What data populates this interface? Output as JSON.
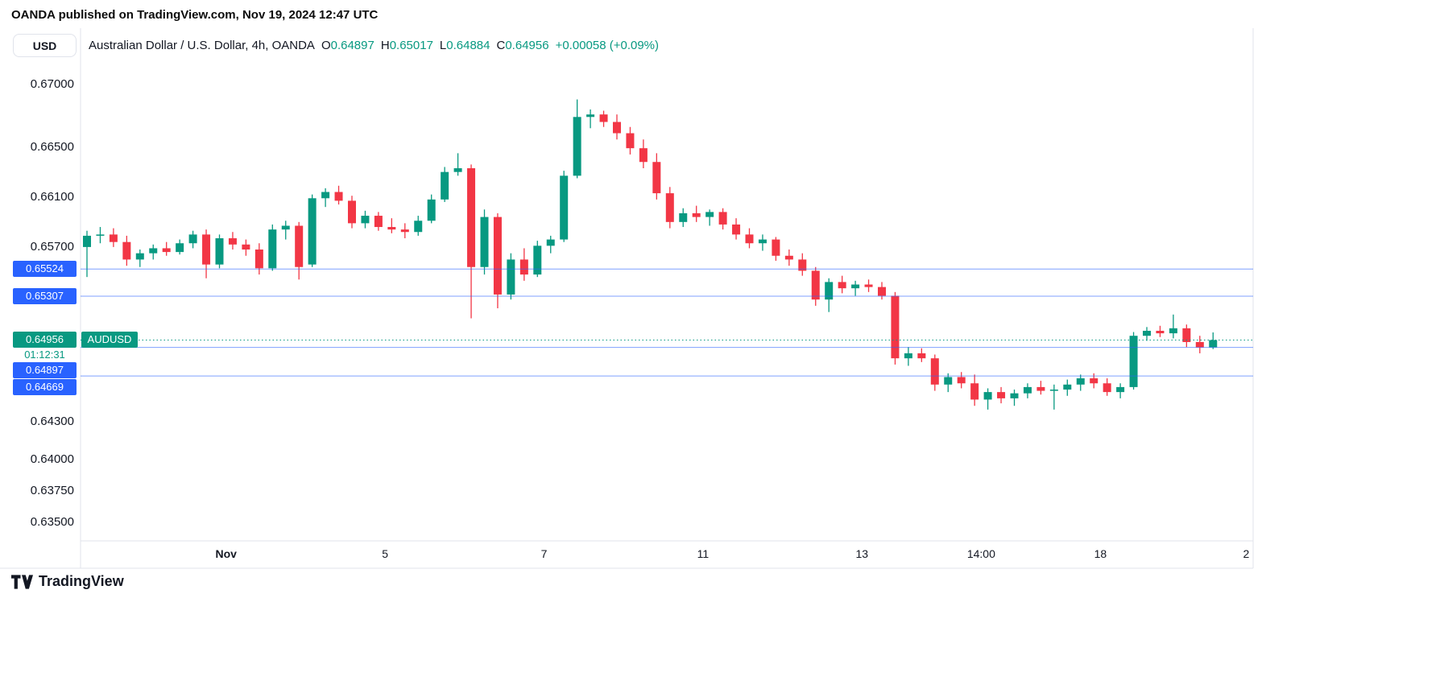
{
  "attribution": "OANDA published on TradingView.com, Nov 19, 2024 12:47 UTC",
  "currency_selector": {
    "label": "USD"
  },
  "symbol_header": {
    "title": "Australian Dollar / U.S. Dollar, 4h, OANDA",
    "open_label": "O",
    "open": "0.64897",
    "high_label": "H",
    "high": "0.65017",
    "low_label": "L",
    "low": "0.64884",
    "close_label": "C",
    "close": "0.64956",
    "change": "+0.00058 (+0.09%)"
  },
  "footer": {
    "logo_text": "TradingView"
  },
  "colors": {
    "up": "#089981",
    "down": "#f23645",
    "line_blue": "#2962ff",
    "text": "#131722",
    "axis_border": "#e0e3eb"
  },
  "chart_data": {
    "type": "candlestick",
    "symbol": "AUDUSD",
    "timeframe": "4h",
    "exchange": "OANDA",
    "ylim": [
      0.6335,
      0.6745
    ],
    "grid": false,
    "price_scale_side": "left",
    "y_ticks": [
      "0.67000",
      "0.66500",
      "0.66100",
      "0.65700",
      "0.64300",
      "0.64000",
      "0.63750",
      "0.63500"
    ],
    "x_labels": [
      {
        "label": "Nov",
        "index": 10.5,
        "bold": true
      },
      {
        "label": "5",
        "index": 22.5
      },
      {
        "label": "7",
        "index": 34.5
      },
      {
        "label": "11",
        "index": 46.5
      },
      {
        "label": "13",
        "index": 58.5
      },
      {
        "label": "14:00",
        "index": 67.5
      },
      {
        "label": "18",
        "index": 76.5
      },
      {
        "label": "2",
        "index": 87.5
      }
    ],
    "price_lines": [
      {
        "price": 0.65524,
        "label": "0.65524"
      },
      {
        "price": 0.65307,
        "label": "0.65307"
      },
      {
        "price": 0.64897,
        "label": "0.64897"
      },
      {
        "price": 0.64669,
        "label": "0.64669"
      }
    ],
    "current_price": {
      "price": 0.64956,
      "label": "0.64956",
      "symbol_badge": "AUDUSD",
      "countdown": "01:12:31"
    },
    "candles": [
      [
        0.657,
        0.6583,
        0.6546,
        0.6579
      ],
      [
        0.6579,
        0.6586,
        0.6573,
        0.658
      ],
      [
        0.658,
        0.6585,
        0.657,
        0.6574
      ],
      [
        0.6574,
        0.6579,
        0.6555,
        0.656
      ],
      [
        0.656,
        0.6568,
        0.6554,
        0.6565
      ],
      [
        0.6565,
        0.6572,
        0.656,
        0.6569
      ],
      [
        0.6569,
        0.6574,
        0.6563,
        0.6566
      ],
      [
        0.6566,
        0.6576,
        0.6564,
        0.6573
      ],
      [
        0.6573,
        0.6583,
        0.6569,
        0.658
      ],
      [
        0.658,
        0.6584,
        0.6545,
        0.6556
      ],
      [
        0.6556,
        0.658,
        0.6553,
        0.6577
      ],
      [
        0.6577,
        0.6582,
        0.6568,
        0.6572
      ],
      [
        0.6572,
        0.6576,
        0.6563,
        0.6568
      ],
      [
        0.6568,
        0.6573,
        0.6548,
        0.6553
      ],
      [
        0.6553,
        0.6588,
        0.6551,
        0.6584
      ],
      [
        0.6584,
        0.6591,
        0.6576,
        0.6587
      ],
      [
        0.6587,
        0.659,
        0.6544,
        0.6554
      ],
      [
        0.6556,
        0.6612,
        0.6554,
        0.6609
      ],
      [
        0.6609,
        0.6617,
        0.6602,
        0.6614
      ],
      [
        0.6614,
        0.6619,
        0.6604,
        0.6607
      ],
      [
        0.6607,
        0.6611,
        0.6585,
        0.6589
      ],
      [
        0.6589,
        0.6599,
        0.6585,
        0.6595
      ],
      [
        0.6595,
        0.6598,
        0.6583,
        0.6586
      ],
      [
        0.6586,
        0.6593,
        0.6581,
        0.6584
      ],
      [
        0.6584,
        0.6589,
        0.6577,
        0.6582
      ],
      [
        0.6582,
        0.6595,
        0.6579,
        0.6591
      ],
      [
        0.6591,
        0.6612,
        0.6589,
        0.6608
      ],
      [
        0.6608,
        0.6634,
        0.6606,
        0.663
      ],
      [
        0.663,
        0.6645,
        0.6627,
        0.6633
      ],
      [
        0.6633,
        0.6636,
        0.6513,
        0.6554
      ],
      [
        0.6554,
        0.66,
        0.6548,
        0.6594
      ],
      [
        0.6594,
        0.6597,
        0.6521,
        0.6532
      ],
      [
        0.6532,
        0.6565,
        0.6528,
        0.656
      ],
      [
        0.656,
        0.6569,
        0.6543,
        0.6548
      ],
      [
        0.6548,
        0.6575,
        0.6546,
        0.6571
      ],
      [
        0.6571,
        0.6579,
        0.6565,
        0.6576
      ],
      [
        0.6576,
        0.6631,
        0.6574,
        0.6627
      ],
      [
        0.6627,
        0.6688,
        0.6625,
        0.6674
      ],
      [
        0.6674,
        0.668,
        0.6665,
        0.6676
      ],
      [
        0.6676,
        0.6679,
        0.6666,
        0.667
      ],
      [
        0.667,
        0.6676,
        0.6656,
        0.6661
      ],
      [
        0.6661,
        0.6666,
        0.6644,
        0.6649
      ],
      [
        0.6649,
        0.6656,
        0.6633,
        0.6638
      ],
      [
        0.6638,
        0.6645,
        0.6608,
        0.6613
      ],
      [
        0.6613,
        0.6618,
        0.6585,
        0.659
      ],
      [
        0.659,
        0.6601,
        0.6586,
        0.6597
      ],
      [
        0.6597,
        0.6603,
        0.659,
        0.6594
      ],
      [
        0.6594,
        0.66,
        0.6587,
        0.6598
      ],
      [
        0.6598,
        0.6601,
        0.6584,
        0.6588
      ],
      [
        0.6588,
        0.6593,
        0.6576,
        0.658
      ],
      [
        0.658,
        0.6585,
        0.6569,
        0.6573
      ],
      [
        0.6573,
        0.658,
        0.6567,
        0.6576
      ],
      [
        0.6576,
        0.6578,
        0.6559,
        0.6563
      ],
      [
        0.6563,
        0.6568,
        0.6555,
        0.656
      ],
      [
        0.656,
        0.6565,
        0.6547,
        0.6551
      ],
      [
        0.6551,
        0.6554,
        0.6523,
        0.6528
      ],
      [
        0.6528,
        0.6545,
        0.6518,
        0.6542
      ],
      [
        0.6542,
        0.6547,
        0.6533,
        0.6537
      ],
      [
        0.6537,
        0.6543,
        0.6531,
        0.654
      ],
      [
        0.654,
        0.6544,
        0.6534,
        0.6538
      ],
      [
        0.6538,
        0.6542,
        0.6528,
        0.6531
      ],
      [
        0.6531,
        0.6534,
        0.6476,
        0.6481
      ],
      [
        0.6481,
        0.649,
        0.6475,
        0.6485
      ],
      [
        0.6485,
        0.6489,
        0.6478,
        0.6481
      ],
      [
        0.6481,
        0.6484,
        0.6455,
        0.646
      ],
      [
        0.646,
        0.6469,
        0.6454,
        0.6466
      ],
      [
        0.6466,
        0.647,
        0.6457,
        0.6461
      ],
      [
        0.6461,
        0.6468,
        0.6443,
        0.6448
      ],
      [
        0.6448,
        0.6457,
        0.644,
        0.6454
      ],
      [
        0.6454,
        0.6458,
        0.6445,
        0.6449
      ],
      [
        0.6449,
        0.6456,
        0.6443,
        0.6453
      ],
      [
        0.6453,
        0.6461,
        0.6449,
        0.6458
      ],
      [
        0.6458,
        0.6463,
        0.6452,
        0.6455
      ],
      [
        0.6455,
        0.646,
        0.644,
        0.6456
      ],
      [
        0.6456,
        0.6464,
        0.6451,
        0.646
      ],
      [
        0.646,
        0.6468,
        0.6455,
        0.6465
      ],
      [
        0.6465,
        0.6469,
        0.6457,
        0.6461
      ],
      [
        0.6461,
        0.6465,
        0.6451,
        0.6454
      ],
      [
        0.6454,
        0.6461,
        0.6449,
        0.6458
      ],
      [
        0.6458,
        0.6502,
        0.6456,
        0.6499
      ],
      [
        0.6499,
        0.6506,
        0.6495,
        0.6503
      ],
      [
        0.6503,
        0.6507,
        0.6498,
        0.6501
      ],
      [
        0.6501,
        0.6516,
        0.6497,
        0.6505
      ],
      [
        0.6505,
        0.6508,
        0.649,
        0.6494
      ],
      [
        0.6494,
        0.6499,
        0.6485,
        0.64897
      ],
      [
        0.64897,
        0.65017,
        0.64884,
        0.64956
      ]
    ]
  }
}
